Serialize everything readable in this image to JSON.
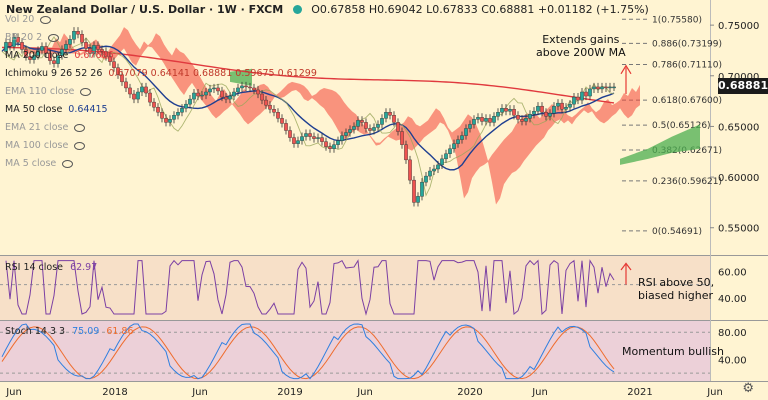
{
  "header": {
    "symbol": "New Zealand Dollar / U.S. Dollar · 1W · FXCM",
    "ohlc": "O0.67858  H0.69042  L0.67833  C0.68881  +0.01182 (+1.75%)"
  },
  "indicators": [
    {
      "label": "Vol 20",
      "value": "",
      "style": "dim"
    },
    {
      "label": "BB 20 2",
      "value": "",
      "style": "dim"
    },
    {
      "label": "MA 200 close",
      "value": "0.67686",
      "style": "normal"
    },
    {
      "label": "Ichimoku 9 26 52 26",
      "value": "0.67079  0.64141  0.68881  0.59675  0.61299",
      "style": "normal"
    },
    {
      "label": "EMA 110 close",
      "value": "",
      "style": "dim"
    },
    {
      "label": "MA 50 close",
      "value": "0.64415",
      "style": "normal"
    },
    {
      "label": "EMA 21 close",
      "value": "",
      "style": "dim"
    },
    {
      "label": "MA 100 close",
      "value": "",
      "style": "dim"
    },
    {
      "label": "MA 5 close",
      "value": "",
      "style": "dim"
    }
  ],
  "last_price": "0.68881",
  "annotations": {
    "price": "Extends gains\nabove 200W MA",
    "rsi": "RSI above 50,\nbiased higher",
    "stoch": "Momentum bullish"
  },
  "rsi_label": "RSI 14 close",
  "rsi_value": "62.97",
  "stoch_label": "Stoch 14 3 3",
  "stoch_k": "75.09",
  "stoch_d": "61.86",
  "colors": {
    "bull": "#26a69a",
    "bear": "#ef5350",
    "ma200": "#e0393e",
    "ma50": "#1f3f91",
    "cloud_up": "#4caf50",
    "cloud_dn": "#f44336",
    "fib": "#777777",
    "rsi": "#7b3fa3",
    "k": "#2f7fe0",
    "d": "#ef6c2d"
  },
  "chart_data": [
    {
      "type": "line",
      "title": "New Zealand Dollar / U.S. Dollar · 1W · FXCM",
      "ylim": [
        0.53,
        0.76
      ],
      "yticks": [
        "0.75000",
        "0.70000",
        "0.65000",
        "0.60000",
        "0.55000"
      ],
      "xlabels": [
        "Jun",
        "2018",
        "Jun",
        "2019",
        "Jun",
        "2020",
        "Jun",
        "2021",
        "Jun"
      ],
      "fib_levels": [
        {
          "label": "1(0.75580)",
          "value": 0.7558
        },
        {
          "label": "0.886(0.73199)",
          "value": 0.73199
        },
        {
          "label": "0.786(0.71110)",
          "value": 0.7111
        },
        {
          "label": "0.618(0.67600)",
          "value": 0.676
        },
        {
          "label": "0.5(0.65126)",
          "value": 0.65126
        },
        {
          "label": "0.382(0.62671)",
          "value": 0.62671
        },
        {
          "label": "0.236(0.59621)",
          "value": 0.59621
        },
        {
          "label": "0(0.54691)",
          "value": 0.54691
        }
      ],
      "close_x": [
        0,
        4,
        8,
        12,
        16,
        20,
        24,
        28,
        32,
        36,
        40,
        44,
        48,
        52,
        56,
        60,
        64,
        68,
        72,
        76,
        80,
        84,
        88,
        92,
        96,
        100,
        104,
        108,
        112,
        116,
        120,
        124,
        128,
        132,
        136,
        140,
        144,
        148,
        152,
        156,
        160,
        164,
        168,
        172,
        176,
        180,
        184,
        188,
        192,
        196,
        200,
        204,
        208,
        212,
        216,
        220,
        224,
        228,
        232,
        236,
        240,
        244,
        248,
        252,
        256,
        260,
        264,
        268,
        272,
        276,
        280,
        284,
        288,
        292,
        296,
        300,
        304,
        308,
        312,
        316,
        320,
        324,
        328,
        332,
        336,
        340,
        344,
        348,
        352,
        356,
        360,
        364,
        368,
        372,
        376,
        380,
        384,
        388,
        392,
        396,
        400,
        404,
        408,
        412,
        416,
        420,
        424,
        428,
        432,
        436,
        440,
        444,
        448,
        452,
        456,
        460,
        464,
        468,
        472,
        476,
        480,
        484,
        488,
        492,
        496,
        500,
        504,
        508,
        512,
        516,
        520,
        524,
        528,
        532,
        536,
        540,
        544,
        548,
        552,
        556,
        560,
        564,
        568,
        572,
        576,
        580,
        584,
        588,
        592,
        596,
        600,
        604,
        608,
        612
      ],
      "close": [
        0.724,
        0.733,
        0.729,
        0.738,
        0.733,
        0.726,
        0.719,
        0.716,
        0.72,
        0.725,
        0.729,
        0.722,
        0.715,
        0.712,
        0.72,
        0.726,
        0.731,
        0.736,
        0.744,
        0.741,
        0.733,
        0.727,
        0.722,
        0.73,
        0.726,
        0.724,
        0.719,
        0.714,
        0.708,
        0.701,
        0.694,
        0.688,
        0.682,
        0.677,
        0.684,
        0.689,
        0.683,
        0.674,
        0.669,
        0.664,
        0.658,
        0.654,
        0.657,
        0.661,
        0.664,
        0.668,
        0.672,
        0.677,
        0.683,
        0.68,
        0.681,
        0.684,
        0.687,
        0.688,
        0.685,
        0.679,
        0.677,
        0.68,
        0.684,
        0.688,
        0.69,
        0.689,
        0.688,
        0.686,
        0.682,
        0.676,
        0.671,
        0.667,
        0.664,
        0.658,
        0.653,
        0.646,
        0.639,
        0.633,
        0.636,
        0.64,
        0.643,
        0.64,
        0.638,
        0.639,
        0.635,
        0.63,
        0.628,
        0.632,
        0.636,
        0.641,
        0.644,
        0.647,
        0.65,
        0.656,
        0.654,
        0.648,
        0.646,
        0.649,
        0.652,
        0.658,
        0.664,
        0.661,
        0.654,
        0.645,
        0.632,
        0.617,
        0.597,
        0.575,
        0.581,
        0.595,
        0.601,
        0.606,
        0.608,
        0.612,
        0.618,
        0.623,
        0.628,
        0.633,
        0.637,
        0.641,
        0.648,
        0.652,
        0.657,
        0.659,
        0.655,
        0.658,
        0.654,
        0.66,
        0.664,
        0.668,
        0.665,
        0.667,
        0.661,
        0.657,
        0.655,
        0.658,
        0.662,
        0.665,
        0.67,
        0.664,
        0.66,
        0.663,
        0.67,
        0.673,
        0.667,
        0.669,
        0.672,
        0.679,
        0.676,
        0.684,
        0.68,
        0.687,
        0.689,
        0.687,
        0.689,
        0.688,
        0.689,
        0.689
      ]
    },
    {
      "type": "line",
      "title": "RSI 14 close",
      "ylim": [
        25,
        70
      ],
      "yticks": [
        "60.00",
        "40.00"
      ]
    },
    {
      "type": "line",
      "title": "Stoch 14 3 3",
      "ylim": [
        10,
        95
      ],
      "yticks": [
        "80.00",
        "40.00"
      ]
    }
  ]
}
